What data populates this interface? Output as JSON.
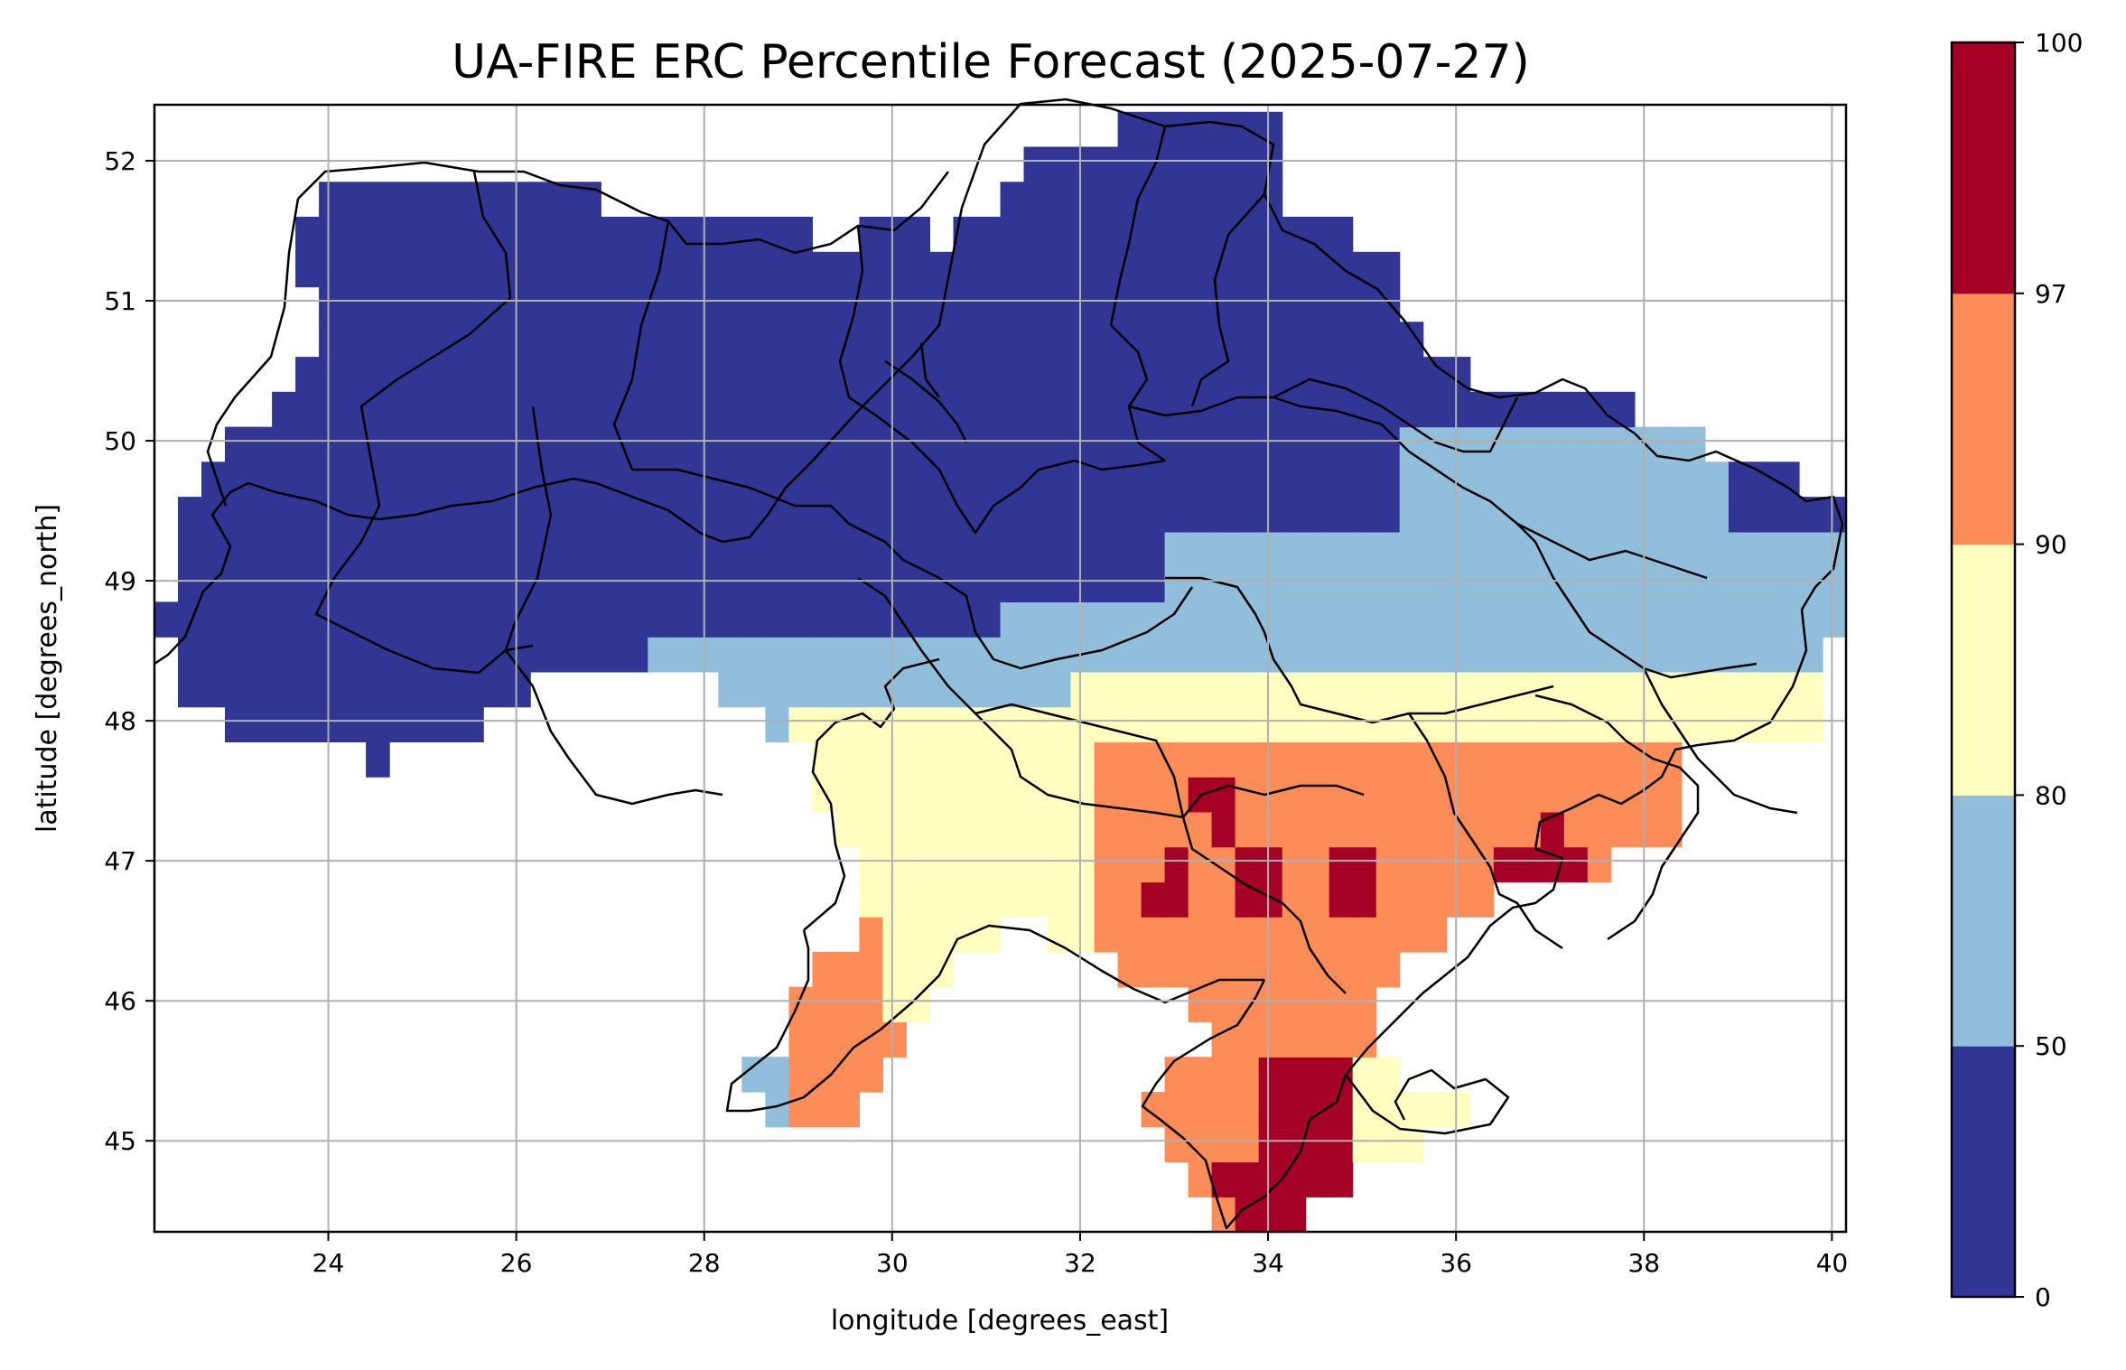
{
  "map": {
    "title": "UA-FIRE ERC Percentile Forecast (2025-07-27)",
    "xlabel": "longitude [degrees_east]",
    "ylabel": "latitude [degrees_north]",
    "lon_range": [
      22.15,
      40.15
    ],
    "lat_range": [
      44.35,
      52.4
    ],
    "x_ticks": [
      "24",
      "26",
      "28",
      "30",
      "32",
      "34",
      "36",
      "38",
      "40"
    ],
    "y_ticks": [
      "45",
      "46",
      "47",
      "48",
      "49",
      "50",
      "51",
      "52"
    ],
    "grid": true,
    "colorbar": {
      "bounds": [
        0,
        50,
        80,
        90,
        97,
        100
      ],
      "tick_labels": [
        "0",
        "50",
        "80",
        "90",
        "97",
        "100"
      ],
      "colors": [
        "#313695",
        "#91bfdb",
        "#ffffbf",
        "#fc8d59",
        "#a50026"
      ]
    }
  }
}
